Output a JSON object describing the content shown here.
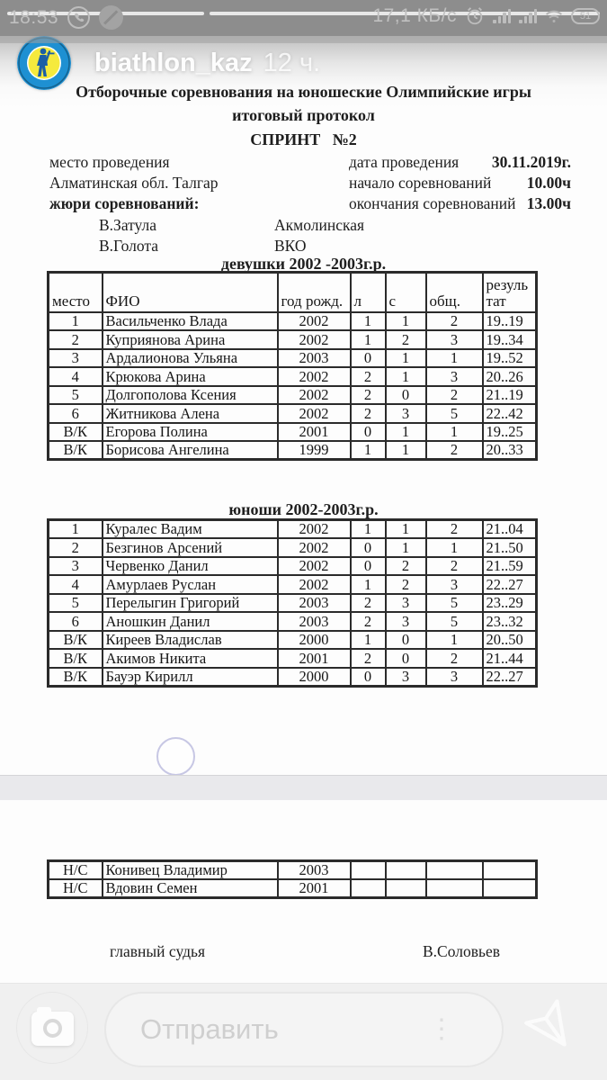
{
  "status_bar": {
    "time": "18:53",
    "network_speed": "17,1 КБ/с",
    "battery_percent": "51"
  },
  "story": {
    "username": "biathlon_kaz",
    "age": "12 ч."
  },
  "icons": {
    "whatsapp": "circled phone",
    "data_saver": "slashed circle",
    "alarm": "clock",
    "signal": "cellular bars x2",
    "wifi": "wifi fan",
    "battery": "pill with number",
    "camera": "camera glyph",
    "more_options": "vertical dots",
    "send": "paper plane outline"
  },
  "colors": {
    "avatar_ring": "#1e90d2",
    "avatar_center": "#f5ea3d",
    "avatar_figure": "#1b5ea6",
    "statusbar_bg": "#8d8d8d",
    "composer_bg": "#f0f0f0"
  },
  "document": {
    "title_line1": "Отборочные соревнования на юношеские Олимпийские игры",
    "title_line2": "итоговый протокол",
    "title_line3": "СПРИНТ   №2",
    "info": {
      "place_label": "место проведения",
      "place_value": "Алматинская обл.  Талгар",
      "jury_label": "жюри соревнований:",
      "date_label": "дата проведения",
      "date_value": "30.11.2019г.",
      "start_label": "начало соревнований",
      "start_value": "10.00ч",
      "end_label": "окончания соревнований",
      "end_value": "13.00ч",
      "jury": [
        {
          "name": "В.Затула",
          "region": "Акмолинская"
        },
        {
          "name": "В.Голота",
          "region": "ВКО"
        }
      ]
    },
    "girls": {
      "section_title": "девушки   2002 -2003г.р.",
      "headers": [
        "место",
        "ФИО",
        "год рожд.",
        "л",
        "с",
        "общ.",
        "результат"
      ],
      "rows": [
        [
          "1",
          "Васильченко Влада",
          "2002",
          "1",
          "1",
          "2",
          "19..19"
        ],
        [
          "2",
          "Куприянова Арина",
          "2002",
          "1",
          "2",
          "3",
          "19..34"
        ],
        [
          "3",
          "Ардалионова Ульяна",
          "2003",
          "0",
          "1",
          "1",
          "19..52"
        ],
        [
          "4",
          "Крюкова Арина",
          "2002",
          "2",
          "1",
          "3",
          "20..26"
        ],
        [
          "5",
          "Долгополова Ксения",
          "2002",
          "2",
          "0",
          "2",
          "21..19"
        ],
        [
          "6",
          "Житникова Алена",
          "2002",
          "2",
          "3",
          "5",
          "22..42"
        ],
        [
          "В/К",
          "Егорова Полина",
          "2001",
          "0",
          "1",
          "1",
          "19..25"
        ],
        [
          "В/К",
          "Борисова Ангелина",
          "1999",
          "1",
          "1",
          "2",
          "20..33"
        ]
      ]
    },
    "boys": {
      "section_title": "юноши 2002-2003г.р.",
      "rows": [
        [
          "1",
          "Куралес Вадим",
          "2002",
          "1",
          "1",
          "2",
          "21..04"
        ],
        [
          "2",
          "Безгинов Арсений",
          "2002",
          "0",
          "1",
          "1",
          "21..50"
        ],
        [
          "3",
          "Червенко Данил",
          "2002",
          "0",
          "2",
          "2",
          "21..59"
        ],
        [
          "4",
          "Амурлаев Руслан",
          "2002",
          "1",
          "2",
          "3",
          "22..27"
        ],
        [
          "5",
          "Перелыгин Григорий",
          "2003",
          "2",
          "3",
          "5",
          "23..29"
        ],
        [
          "6",
          "Аношкин Данил",
          "2003",
          "2",
          "3",
          "5",
          "23..32"
        ],
        [
          "В/К",
          "Киреев Владислав",
          "2000",
          "1",
          "0",
          "1",
          "20..50"
        ],
        [
          "В/К",
          "Акимов Никита",
          "2001",
          "2",
          "0",
          "2",
          "21..44"
        ],
        [
          "В/К",
          "Бауэр Кирилл",
          "2000",
          "0",
          "3",
          "3",
          "22..27"
        ]
      ]
    },
    "not_started": {
      "rows": [
        [
          "Н/С",
          "Конивец Владимир",
          "2003",
          "",
          "",
          "",
          ""
        ],
        [
          "Н/С",
          "Вдовин Семен",
          "2001",
          "",
          "",
          "",
          ""
        ]
      ]
    },
    "footer": {
      "judge_label": "главный судья",
      "judge_name": "В.Соловьев"
    }
  },
  "composer": {
    "placeholder": "Отправить"
  }
}
